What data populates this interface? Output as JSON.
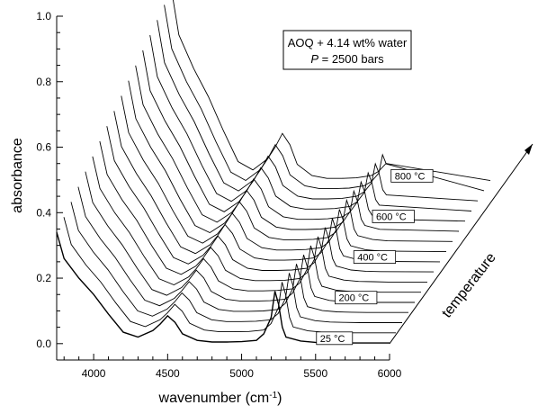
{
  "chart_data": {
    "type": "line",
    "xlabel": "wavenumber (cm⁻¹)",
    "ylabel": "absorbance",
    "third_axis_label": "temperature",
    "xlim": [
      3750,
      6000
    ],
    "ylim": [
      -0.05,
      1.0
    ],
    "x_ticks": [
      4000,
      4500,
      5000,
      5500,
      6000
    ],
    "y_ticks": [
      "0.0",
      "0.2",
      "0.4",
      "0.6",
      "0.8",
      "1.0"
    ],
    "annotation": {
      "line1": "AOQ + 4.14 wt% water",
      "line2_italic": "P",
      "line2_rest": " = 2500 bars"
    },
    "temperature_labels": [
      "25 °C",
      "200 °C",
      "400 °C",
      "600 °C",
      "800 °C"
    ],
    "curves": 17,
    "x_offset_per_curve": 48.5,
    "y_offset_per_curve": 0.031,
    "base_series": {
      "name": "25 °C",
      "x": [
        3750,
        3800,
        3900,
        4000,
        4100,
        4200,
        4300,
        4400,
        4450,
        4500,
        4550,
        4600,
        4700,
        4800,
        4900,
        5000,
        5100,
        5150,
        5200,
        5225,
        5250,
        5275,
        5300,
        5400,
        5500,
        5600,
        5700,
        5800,
        5900,
        6000
      ],
      "y": [
        0.34,
        0.26,
        0.2,
        0.15,
        0.09,
        0.035,
        0.02,
        0.04,
        0.06,
        0.085,
        0.065,
        0.03,
        0.01,
        0.005,
        0.005,
        0.006,
        0.01,
        0.03,
        0.08,
        0.16,
        0.12,
        0.05,
        0.02,
        0.008,
        0.004,
        0.003,
        0.002,
        0.002,
        0.002,
        0.002
      ]
    }
  }
}
